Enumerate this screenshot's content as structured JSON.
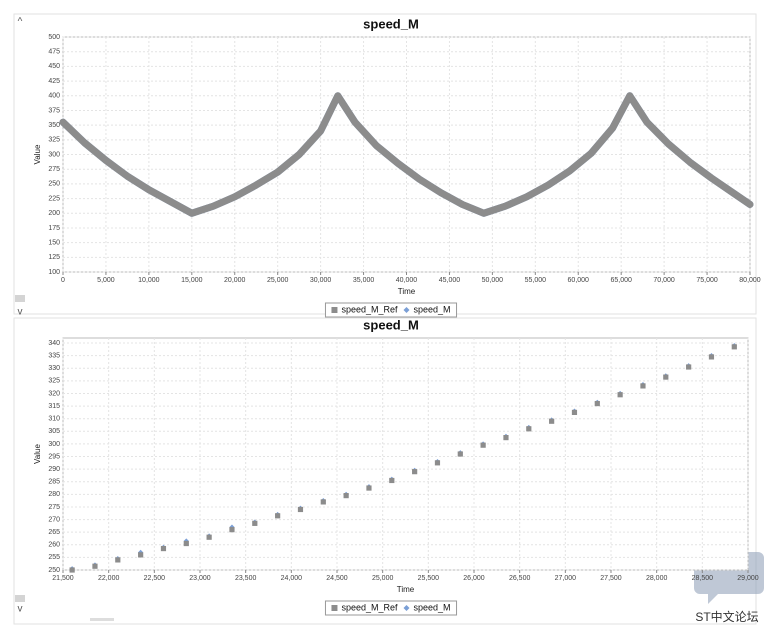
{
  "chart_data": [
    {
      "type": "line",
      "title": "speed_M",
      "xlabel": "Time",
      "ylabel": "Value",
      "x": [
        0,
        2500,
        5000,
        7500,
        10000,
        12500,
        15000,
        17500,
        20000,
        22500,
        25000,
        27500,
        30000,
        32000,
        34000,
        36500,
        39000,
        41500,
        44000,
        46500,
        49000,
        51500,
        54000,
        56500,
        59000,
        61500,
        64000,
        66000,
        68000,
        70500,
        73000,
        75500,
        78000,
        80000
      ],
      "series": [
        {
          "name": "speed_M_Ref",
          "color": "#8c8c8c",
          "marker": "square",
          "values": [
            355,
            320,
            290,
            263,
            240,
            220,
            200,
            212,
            228,
            248,
            270,
            300,
            340,
            400,
            355,
            315,
            285,
            258,
            235,
            215,
            200,
            212,
            228,
            248,
            272,
            302,
            345,
            400,
            355,
            318,
            287,
            260,
            235,
            215
          ]
        },
        {
          "name": "speed_M",
          "color": "#7b9fd6",
          "marker": "diamond",
          "values": [
            355,
            320,
            290,
            263,
            240,
            220,
            200,
            212,
            228,
            248,
            270,
            300,
            340,
            400,
            355,
            315,
            285,
            258,
            235,
            215,
            200,
            212,
            228,
            248,
            272,
            302,
            345,
            400,
            355,
            318,
            287,
            260,
            235,
            215
          ]
        }
      ],
      "xlim": [
        0,
        80000
      ],
      "ylim": [
        100,
        500
      ],
      "xticks": [
        0,
        {
          "value": 5000,
          "label": "5,000"
        },
        {
          "value": 10000,
          "label": "10,000"
        },
        {
          "value": 15000,
          "label": "15,000"
        },
        {
          "value": 20000,
          "label": "20,000"
        },
        {
          "value": 25000,
          "label": "25,000"
        },
        {
          "value": 30000,
          "label": "30,000"
        },
        {
          "value": 35000,
          "label": "35,000"
        },
        {
          "value": 40000,
          "label": "40,000"
        },
        {
          "value": 45000,
          "label": "45,000"
        },
        {
          "value": 50000,
          "label": "50,000"
        },
        {
          "value": 55000,
          "label": "55,000"
        },
        {
          "value": 60000,
          "label": "60,000"
        },
        {
          "value": 65000,
          "label": "65,000"
        },
        {
          "value": 70000,
          "label": "70,000"
        },
        {
          "value": 75000,
          "label": "75,000"
        },
        {
          "value": 80000,
          "label": "80,000"
        }
      ],
      "yticks": [
        100,
        125,
        150,
        175,
        200,
        225,
        250,
        275,
        300,
        325,
        350,
        375,
        400,
        425,
        450,
        475,
        500
      ],
      "grid": true,
      "legend": "bottom"
    },
    {
      "type": "scatter",
      "title": "speed_M",
      "xlabel": "Time",
      "ylabel": "Value",
      "x": [
        21600,
        21850,
        22100,
        22350,
        22600,
        22850,
        23100,
        23350,
        23600,
        23850,
        24100,
        24350,
        24600,
        24850,
        25100,
        25350,
        25600,
        25850,
        26100,
        26350,
        26600,
        26850,
        27100,
        27350,
        27600,
        27850,
        28100,
        28350,
        28600,
        28850
      ],
      "series": [
        {
          "name": "speed_M_Ref",
          "color": "#8c8c8c",
          "marker": "square",
          "values": [
            250,
            251.5,
            254,
            256,
            258.5,
            260.5,
            263,
            266,
            268.5,
            271.5,
            274,
            277,
            279.5,
            282.5,
            285.5,
            289,
            292.5,
            296,
            299.5,
            302.5,
            306,
            309,
            312.5,
            316,
            319.5,
            323,
            326.5,
            330.5,
            334.5,
            338.5
          ]
        },
        {
          "name": "speed_M",
          "color": "#7b9fd6",
          "marker": "diamond",
          "values": [
            250.5,
            252,
            254.5,
            257,
            259,
            261.5,
            263.5,
            267,
            269,
            272,
            274.5,
            277.5,
            280,
            283,
            286,
            289.5,
            293,
            296.5,
            300,
            303,
            306.5,
            309.5,
            313,
            316.5,
            320,
            323.5,
            327,
            331,
            335,
            339
          ]
        }
      ],
      "xlim": [
        21500,
        29000
      ],
      "ylim": [
        250,
        342
      ],
      "xticks": [
        {
          "value": 21500,
          "label": "21,500"
        },
        {
          "value": 22000,
          "label": "22,000"
        },
        {
          "value": 22500,
          "label": "22,500"
        },
        {
          "value": 23000,
          "label": "23,000"
        },
        {
          "value": 23500,
          "label": "23,500"
        },
        {
          "value": 24000,
          "label": "24,000"
        },
        {
          "value": 24500,
          "label": "24,500"
        },
        {
          "value": 25000,
          "label": "25,000"
        },
        {
          "value": 25500,
          "label": "25,500"
        },
        {
          "value": 26000,
          "label": "26,000"
        },
        {
          "value": 26500,
          "label": "26,500"
        },
        {
          "value": 27000,
          "label": "27,000"
        },
        {
          "value": 27500,
          "label": "27,500"
        },
        {
          "value": 28000,
          "label": "28,000"
        },
        {
          "value": 28500,
          "label": "28,500"
        },
        {
          "value": 29000,
          "label": "29,000"
        }
      ],
      "yticks": [
        250,
        255,
        260,
        265,
        270,
        275,
        280,
        285,
        290,
        295,
        300,
        305,
        310,
        315,
        320,
        325,
        330,
        335,
        340
      ],
      "grid": true,
      "legend": "bottom"
    }
  ],
  "watermark": "ST中文论坛"
}
